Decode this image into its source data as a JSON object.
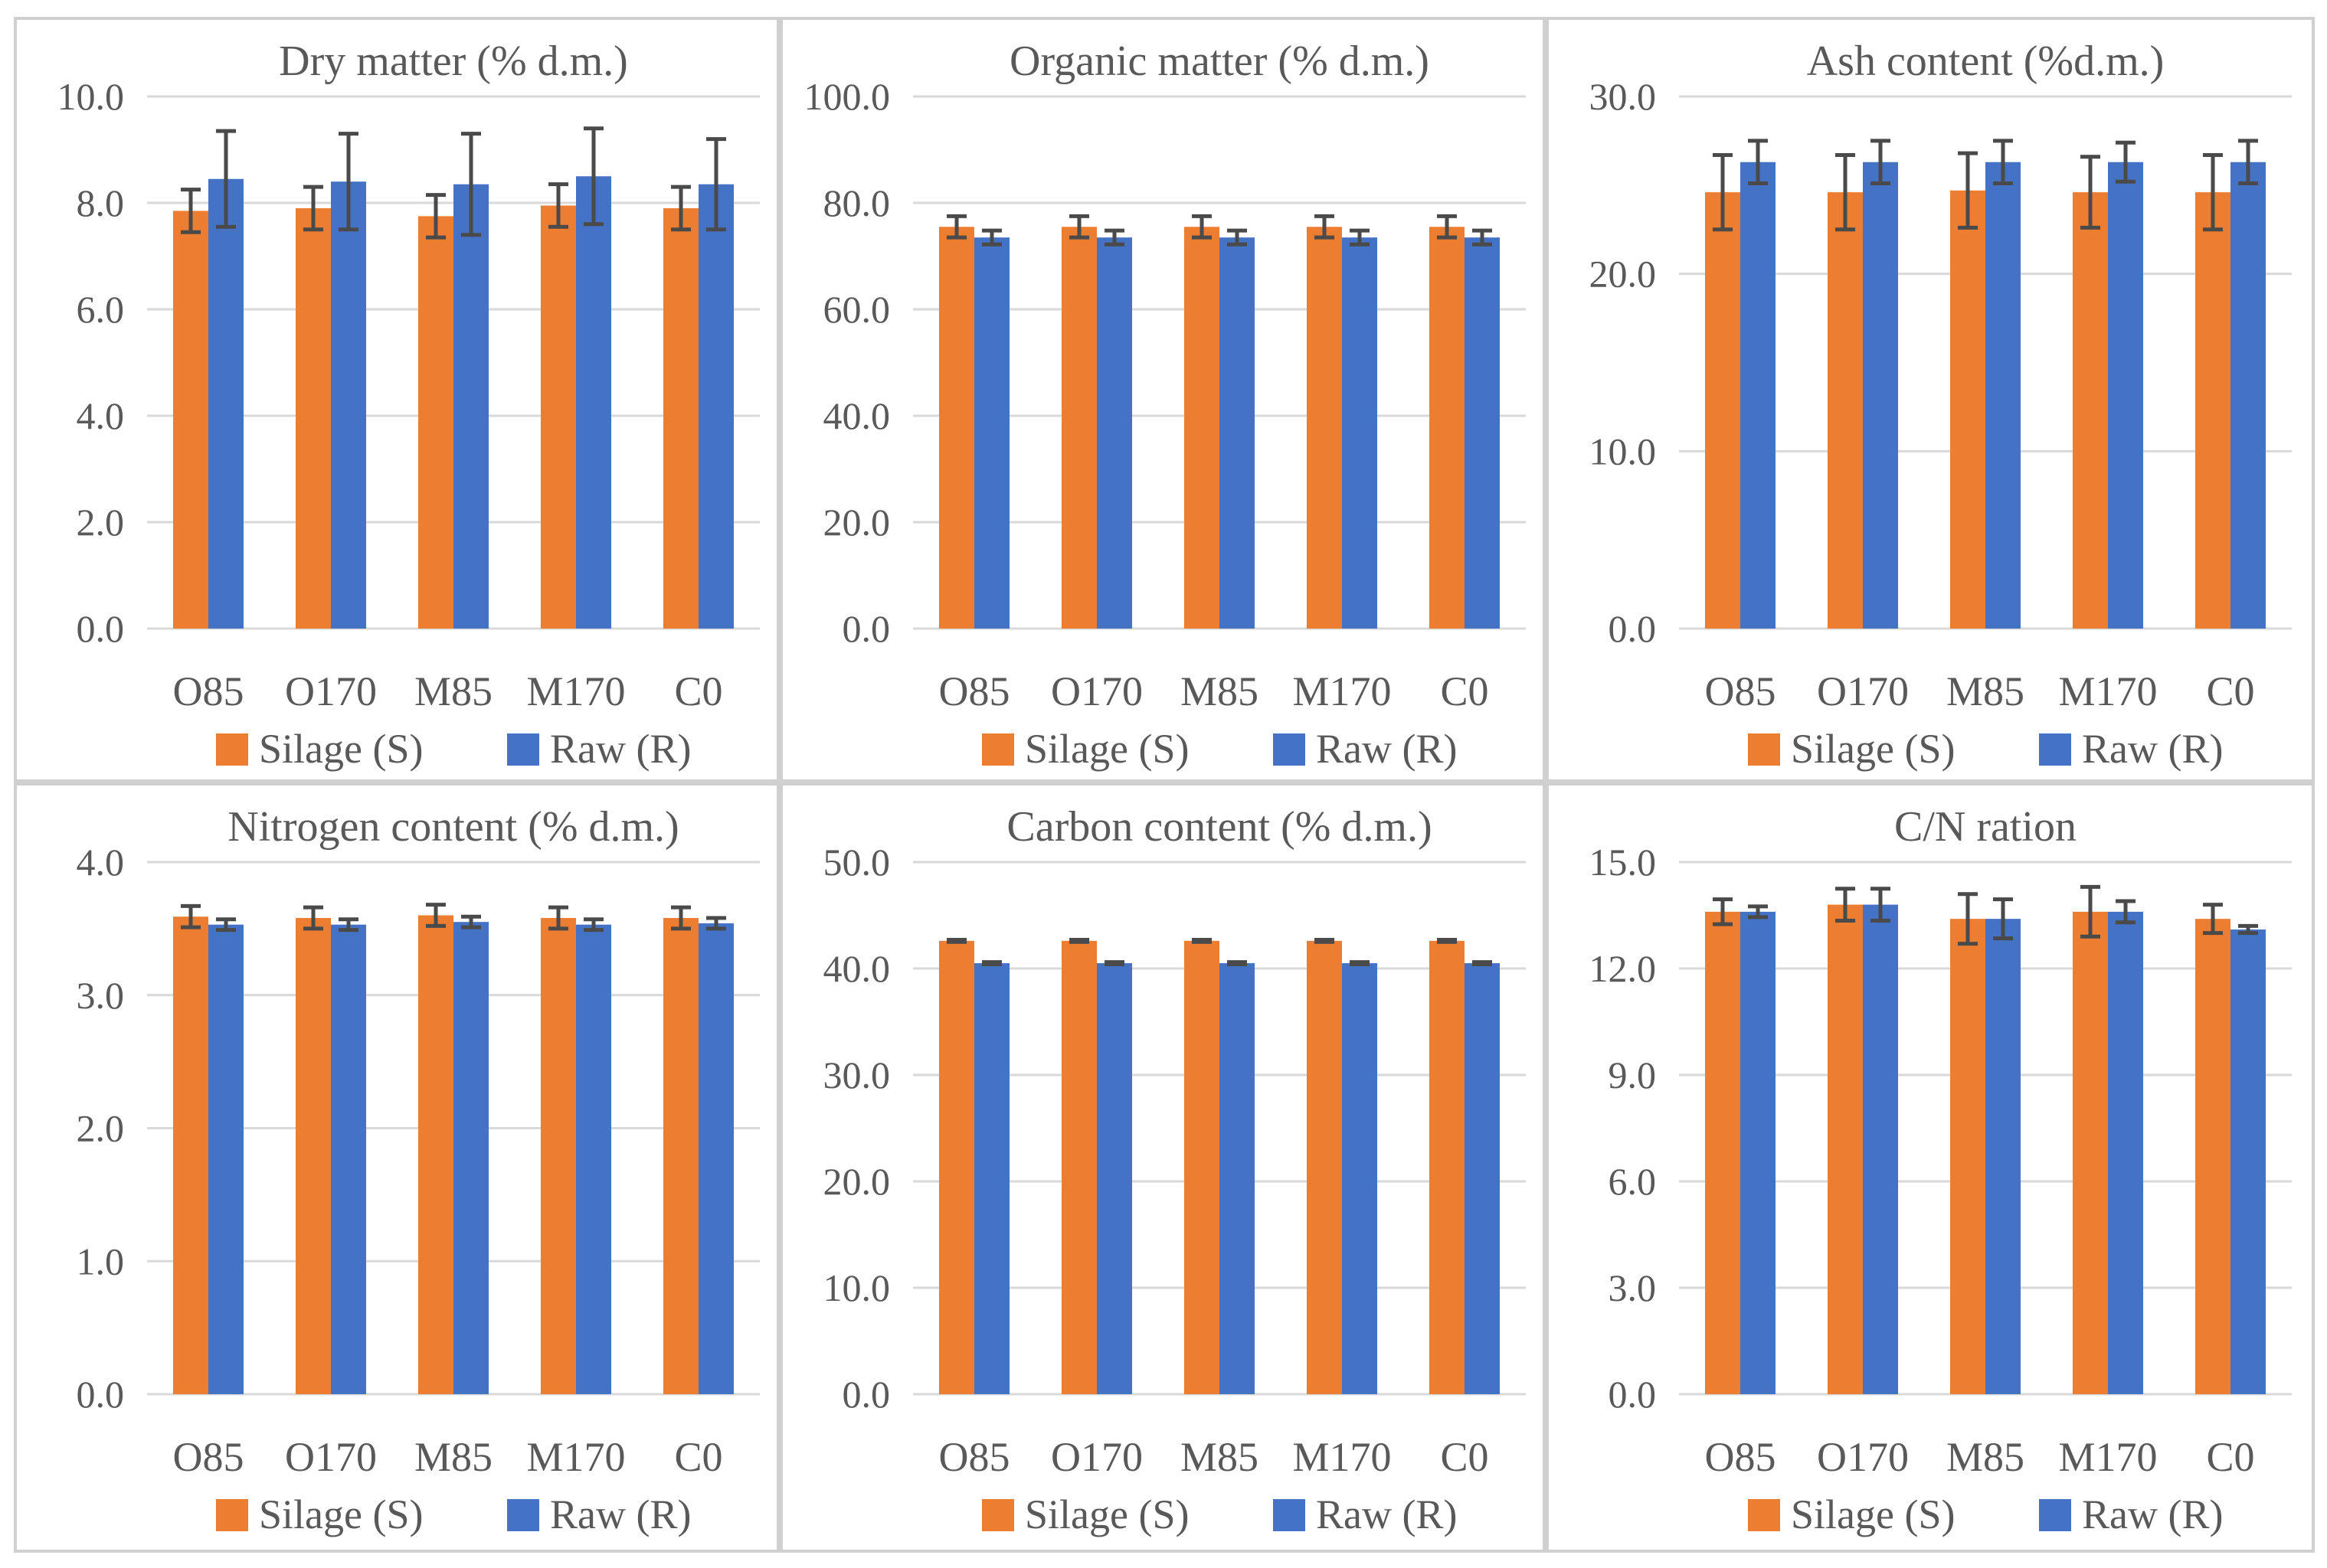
{
  "colors": {
    "silage": "#ED7D31",
    "raw": "#4472C4",
    "text": "#595959",
    "grid": "#D9D9D9"
  },
  "legend": [
    "Silage (S)",
    "Raw (R)"
  ],
  "chart_data": [
    {
      "type": "bar",
      "title": "Dry matter (% d.m.)",
      "categories": [
        "O85",
        "O170",
        "M85",
        "M170",
        "C0"
      ],
      "ylim": [
        0,
        10
      ],
      "yticks": [
        "0.0",
        "2.0",
        "4.0",
        "6.0",
        "8.0",
        "10.0"
      ],
      "series": [
        {
          "name": "Silage (S)",
          "values": [
            7.85,
            7.9,
            7.75,
            7.95,
            7.9
          ],
          "errors": [
            0.4,
            0.4,
            0.4,
            0.4,
            0.4
          ]
        },
        {
          "name": "Raw (R)",
          "values": [
            8.45,
            8.4,
            8.35,
            8.5,
            8.35
          ],
          "errors": [
            0.9,
            0.9,
            0.95,
            0.9,
            0.85
          ]
        }
      ],
      "legend_position": "bottom",
      "grid": true
    },
    {
      "type": "bar",
      "title": "Organic matter (% d.m.)",
      "categories": [
        "O85",
        "O170",
        "M85",
        "M170",
        "C0"
      ],
      "ylim": [
        0,
        100
      ],
      "yticks": [
        "0.0",
        "20.0",
        "40.0",
        "60.0",
        "80.0",
        "100.0"
      ],
      "series": [
        {
          "name": "Silage (S)",
          "values": [
            75.5,
            75.5,
            75.5,
            75.5,
            75.5
          ],
          "errors": [
            2.0,
            2.0,
            2.0,
            2.0,
            2.0
          ]
        },
        {
          "name": "Raw (R)",
          "values": [
            73.5,
            73.5,
            73.5,
            73.5,
            73.5
          ],
          "errors": [
            1.3,
            1.3,
            1.3,
            1.3,
            1.3
          ]
        }
      ],
      "legend_position": "bottom",
      "grid": true
    },
    {
      "type": "bar",
      "title": "Ash content (%d.m.)",
      "categories": [
        "O85",
        "O170",
        "M85",
        "M170",
        "C0"
      ],
      "ylim": [
        0,
        30
      ],
      "yticks": [
        "0.0",
        "10.0",
        "20.0",
        "30.0"
      ],
      "series": [
        {
          "name": "Silage (S)",
          "values": [
            24.6,
            24.6,
            24.7,
            24.6,
            24.6
          ],
          "errors": [
            2.1,
            2.1,
            2.1,
            2.0,
            2.1
          ]
        },
        {
          "name": "Raw (R)",
          "values": [
            26.3,
            26.3,
            26.3,
            26.3,
            26.3
          ],
          "errors": [
            1.2,
            1.2,
            1.2,
            1.1,
            1.2
          ]
        }
      ],
      "legend_position": "bottom",
      "grid": true
    },
    {
      "type": "bar",
      "title": "Nitrogen content (% d.m.)",
      "categories": [
        "O85",
        "O170",
        "M85",
        "M170",
        "C0"
      ],
      "ylim": [
        0,
        4
      ],
      "yticks": [
        "0.0",
        "1.0",
        "2.0",
        "3.0",
        "4.0"
      ],
      "series": [
        {
          "name": "Silage (S)",
          "values": [
            3.59,
            3.58,
            3.6,
            3.58,
            3.58
          ],
          "errors": [
            0.08,
            0.08,
            0.08,
            0.08,
            0.08
          ]
        },
        {
          "name": "Raw (R)",
          "values": [
            3.53,
            3.53,
            3.55,
            3.53,
            3.54
          ],
          "errors": [
            0.04,
            0.04,
            0.04,
            0.04,
            0.04
          ]
        }
      ],
      "legend_position": "bottom",
      "grid": true
    },
    {
      "type": "bar",
      "title": "Carbon content (% d.m.)",
      "categories": [
        "O85",
        "O170",
        "M85",
        "M170",
        "C0"
      ],
      "ylim": [
        0,
        50
      ],
      "yticks": [
        "0.0",
        "10.0",
        "20.0",
        "30.0",
        "40.0",
        "50.0"
      ],
      "series": [
        {
          "name": "Silage (S)",
          "values": [
            42.6,
            42.6,
            42.6,
            42.6,
            42.6
          ],
          "errors": [
            0.1,
            0.1,
            0.1,
            0.1,
            0.1
          ]
        },
        {
          "name": "Raw (R)",
          "values": [
            40.5,
            40.5,
            40.5,
            40.5,
            40.5
          ],
          "errors": [
            0.1,
            0.1,
            0.1,
            0.1,
            0.1
          ]
        }
      ],
      "legend_position": "bottom",
      "grid": true
    },
    {
      "type": "bar",
      "title": "C/N ration",
      "categories": [
        "O85",
        "O170",
        "M85",
        "M170",
        "C0"
      ],
      "ylim": [
        0,
        15
      ],
      "yticks": [
        "0.0",
        "3.0",
        "6.0",
        "9.0",
        "12.0",
        "15.0"
      ],
      "series": [
        {
          "name": "Silage (S)",
          "values": [
            13.6,
            13.8,
            13.4,
            13.6,
            13.4
          ],
          "errors": [
            0.35,
            0.45,
            0.7,
            0.7,
            0.4
          ]
        },
        {
          "name": "Raw (R)",
          "values": [
            13.6,
            13.8,
            13.4,
            13.6,
            13.1
          ],
          "errors": [
            0.15,
            0.45,
            0.55,
            0.3,
            0.1
          ]
        }
      ],
      "legend_position": "bottom",
      "grid": true
    }
  ]
}
